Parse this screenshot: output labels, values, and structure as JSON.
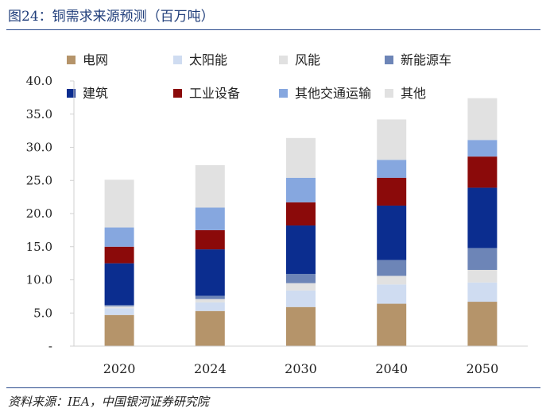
{
  "header": {
    "title": "图24：铜需求来源预测（百万吨）"
  },
  "footer": {
    "source": "资料来源：IEA，中国银河证券研究院"
  },
  "chart_data": {
    "type": "bar",
    "stacked": true,
    "title": "图24：铜需求来源预测（百万吨）",
    "xlabel": "",
    "ylabel": "",
    "categories": [
      "2020",
      "2024",
      "2030",
      "2040",
      "2050"
    ],
    "ylim": [
      0,
      40
    ],
    "yticks": [
      0,
      5,
      10,
      15,
      20,
      25,
      30,
      35,
      40
    ],
    "ytick_labels": [
      "-",
      "5.0",
      "10.0",
      "15.0",
      "20.0",
      "25.0",
      "30.0",
      "35.0",
      "40.0"
    ],
    "grid": false,
    "legend": "top",
    "series": [
      {
        "name": "电网",
        "color": "#b5946a",
        "values": [
          4.7,
          5.3,
          5.9,
          6.4,
          6.7
        ]
      },
      {
        "name": "太阳能",
        "color": "#cfdcf1",
        "values": [
          1.0,
          1.3,
          2.5,
          2.9,
          2.9
        ]
      },
      {
        "name": "风能",
        "color": "#e1e1e1",
        "values": [
          0.3,
          0.5,
          1.1,
          1.3,
          1.9
        ]
      },
      {
        "name": "新能源车",
        "color": "#6d85b7",
        "values": [
          0.2,
          0.5,
          1.4,
          2.4,
          3.3
        ]
      },
      {
        "name": "建筑",
        "color": "#0b2d8f",
        "values": [
          6.3,
          7.0,
          7.3,
          8.2,
          9.1
        ]
      },
      {
        "name": "工业设备",
        "color": "#8b0a0a",
        "values": [
          2.5,
          2.9,
          3.5,
          4.2,
          4.7
        ]
      },
      {
        "name": "其他交通运输",
        "color": "#86a7df",
        "values": [
          2.9,
          3.4,
          3.7,
          2.7,
          2.5
        ]
      },
      {
        "name": "其他",
        "color": "#e1e1e1",
        "values": [
          7.2,
          6.4,
          6.0,
          6.1,
          6.3
        ]
      }
    ]
  }
}
